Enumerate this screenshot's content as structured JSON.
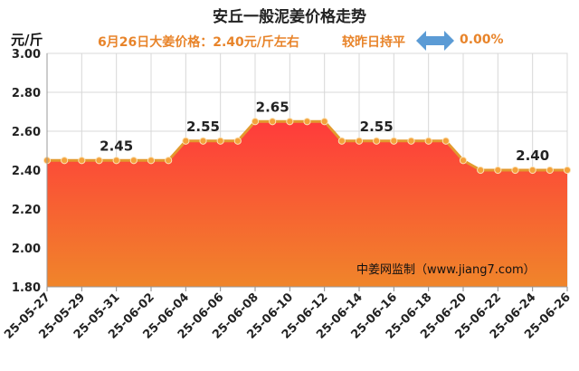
{
  "title": "安丘一般泥姜价格走势",
  "subtitle": "6月26日大姜价格：2.40元/斤左右",
  "subtitle2": "较昨日持平",
  "change": "0.00%",
  "unit_label": "元/斤",
  "watermark": "中姜网监制（www.jiang7.com）",
  "colors": {
    "title": "#222222",
    "accent": "#e8842a",
    "line": "#e39a2f",
    "arrow": "#5b9bd5",
    "fill_top": "#ff3b3b",
    "fill_bottom": "#f0852a"
  },
  "chart_data": {
    "type": "area",
    "ylim": [
      1.8,
      3.0
    ],
    "yticks": [
      "1.80",
      "2.00",
      "2.20",
      "2.40",
      "2.60",
      "2.80",
      "3.00"
    ],
    "xticks": [
      "25-05-27",
      "25-05-29",
      "25-05-31",
      "25-06-02",
      "25-06-04",
      "25-06-06",
      "25-06-08",
      "25-06-10",
      "25-06-12",
      "25-06-14",
      "25-06-16",
      "25-06-18",
      "25-06-20",
      "25-06-22",
      "25-06-24",
      "25-06-26"
    ],
    "x": [
      "25-05-27",
      "25-05-28",
      "25-05-29",
      "25-05-30",
      "25-05-31",
      "25-06-01",
      "25-06-02",
      "25-06-03",
      "25-06-04",
      "25-06-05",
      "25-06-06",
      "25-06-07",
      "25-06-08",
      "25-06-09",
      "25-06-10",
      "25-06-11",
      "25-06-12",
      "25-06-13",
      "25-06-14",
      "25-06-15",
      "25-06-16",
      "25-06-17",
      "25-06-18",
      "25-06-19",
      "25-06-20",
      "25-06-21",
      "25-06-22",
      "25-06-23",
      "25-06-24",
      "25-06-25",
      "25-06-26"
    ],
    "values": [
      2.45,
      2.45,
      2.45,
      2.45,
      2.45,
      2.45,
      2.45,
      2.45,
      2.55,
      2.55,
      2.55,
      2.55,
      2.65,
      2.65,
      2.65,
      2.65,
      2.65,
      2.55,
      2.55,
      2.55,
      2.55,
      2.55,
      2.55,
      2.55,
      2.45,
      2.4,
      2.4,
      2.4,
      2.4,
      2.4,
      2.4
    ],
    "annotations": [
      {
        "text": "2.45",
        "x": "25-05-31",
        "y": 2.45
      },
      {
        "text": "2.55",
        "x": "25-06-05",
        "y": 2.55
      },
      {
        "text": "2.65",
        "x": "25-06-09",
        "y": 2.65
      },
      {
        "text": "2.55",
        "x": "25-06-15",
        "y": 2.55
      },
      {
        "text": "2.40",
        "x": "25-06-24",
        "y": 2.4
      }
    ],
    "grid": true
  }
}
